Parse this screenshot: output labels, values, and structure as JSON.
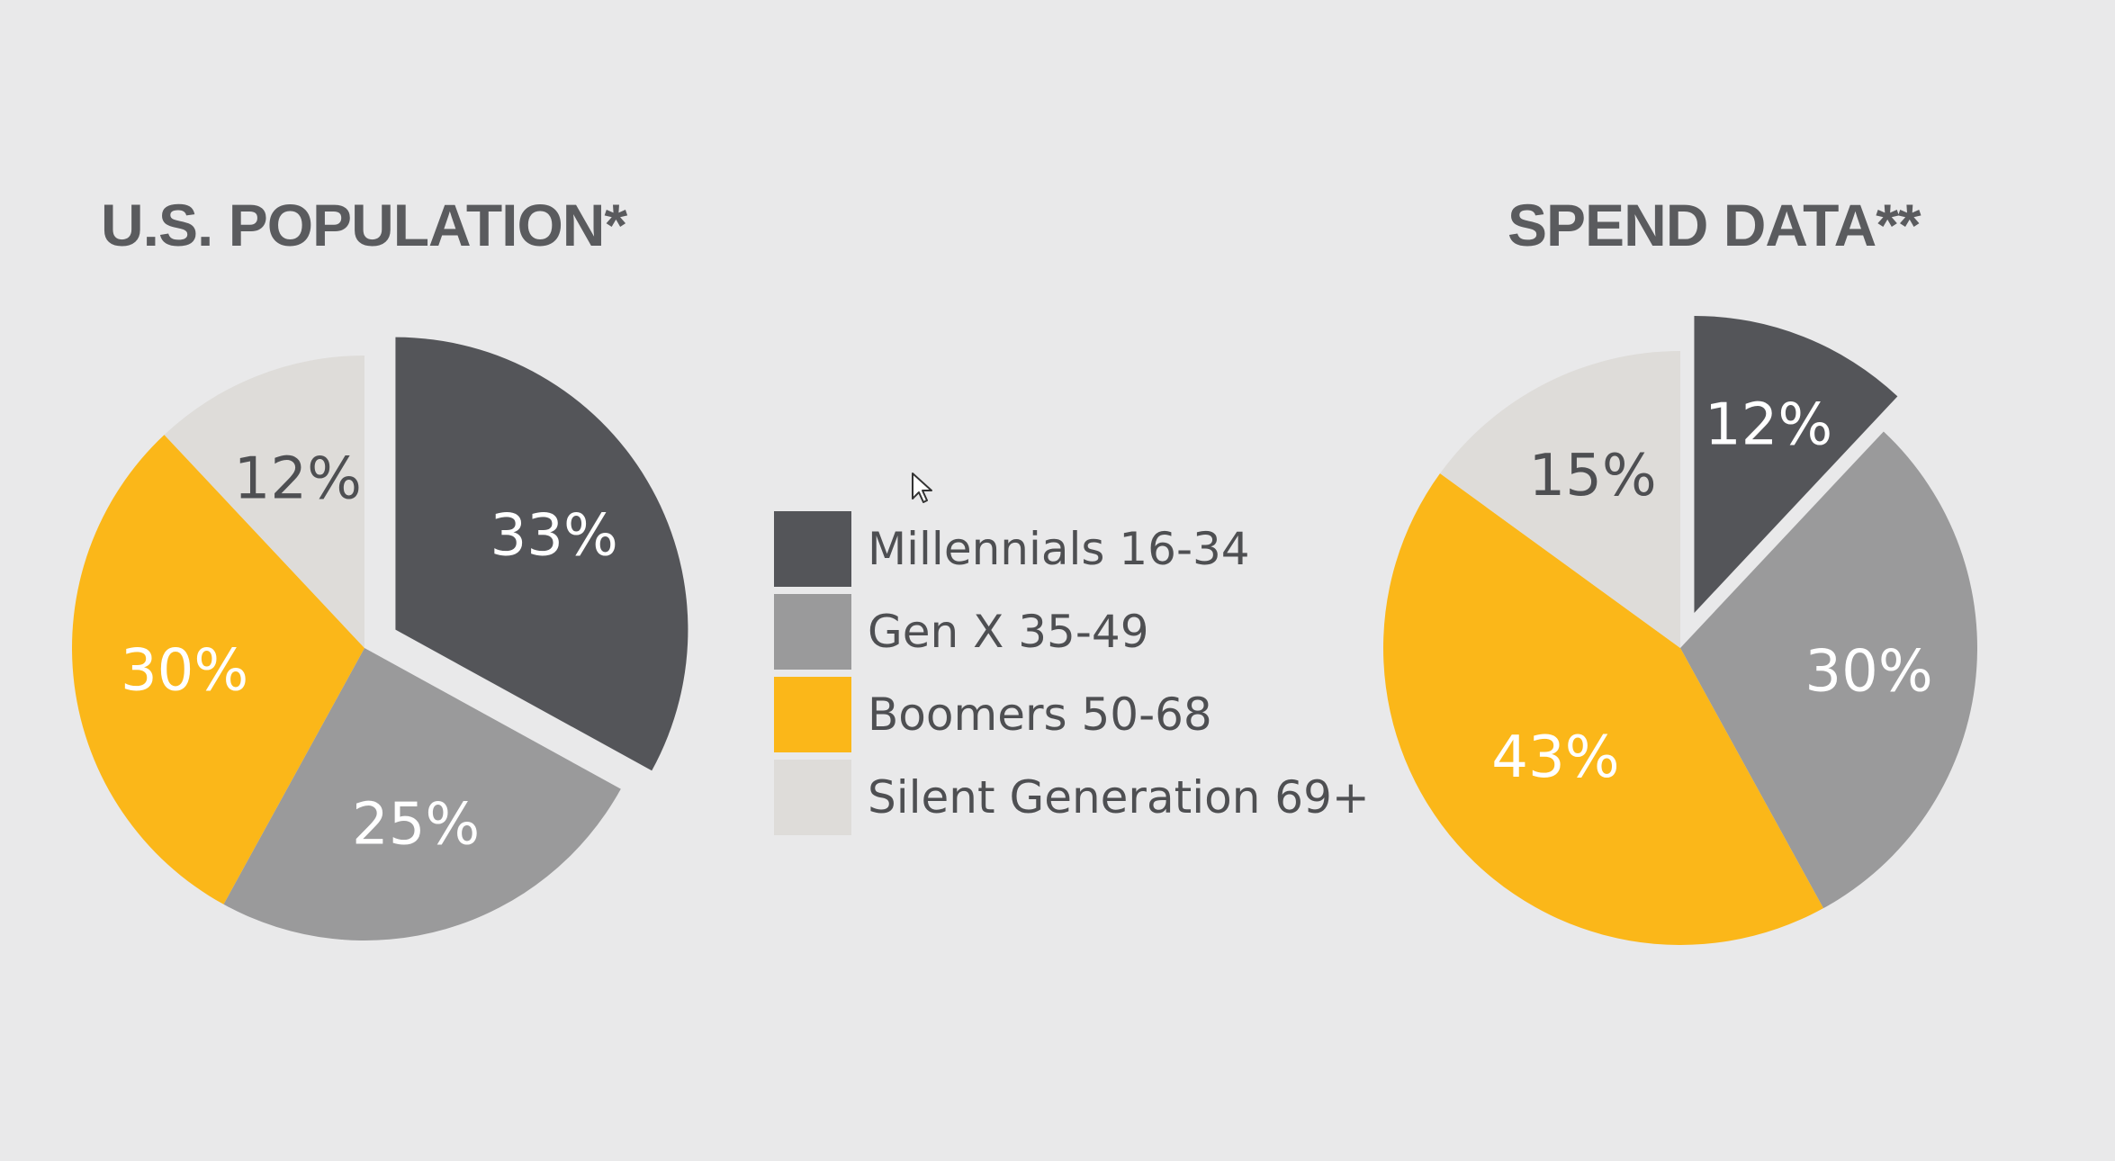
{
  "legend": {
    "items": [
      {
        "label": "Millennials 16-34",
        "color": "#545559"
      },
      {
        "label": "Gen X 35-49",
        "color": "#9a9a9b"
      },
      {
        "label": "Boomers 50-68",
        "color": "#fbb719"
      },
      {
        "label": "Silent Generation 69+",
        "color": "#dedcd9"
      }
    ]
  },
  "chart_data": [
    {
      "type": "pie",
      "title": "U.S. POPULATION*",
      "categories": [
        "Millennials 16-34",
        "Gen X 35-49",
        "Boomers 50-68",
        "Silent Generation 69+"
      ],
      "values": [
        33,
        25,
        30,
        12
      ],
      "labels": [
        "33%",
        "25%",
        "30%",
        "12%"
      ],
      "label_colors": [
        "#ffffff",
        "#ffffff",
        "#ffffff",
        "#4e4f52"
      ],
      "exploded": "Millennials 16-34"
    },
    {
      "type": "pie",
      "title": "SPEND DATA**",
      "categories": [
        "Millennials 16-34",
        "Gen X 35-49",
        "Boomers 50-68",
        "Silent Generation 69+"
      ],
      "values": [
        12,
        30,
        43,
        15
      ],
      "labels": [
        "12%",
        "30%",
        "43%",
        "15%"
      ],
      "label_colors": [
        "#ffffff",
        "#ffffff",
        "#ffffff",
        "#4e4f52"
      ],
      "exploded": "Millennials 16-34"
    }
  ]
}
